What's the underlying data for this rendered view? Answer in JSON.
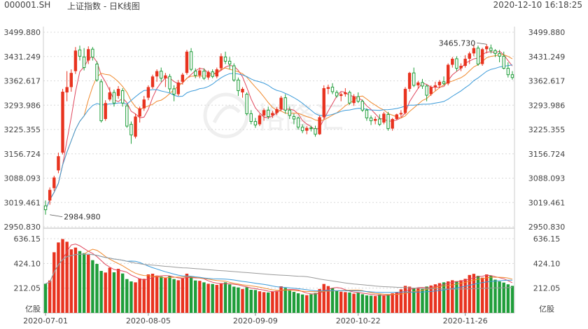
{
  "header": {
    "symbol": "000001.SH",
    "title": "上证指数 - 日K线图",
    "datetime": "2020-12-10 16:18:25"
  },
  "watermark": {
    "text": "格隆汇"
  },
  "colors": {
    "up": "#e8331f",
    "down": "#1f9e3a",
    "ma5": "#e0475d",
    "ma10": "#f08a2e",
    "ma20": "#3a9ad9",
    "ma60": "#9a9a9a",
    "grid": "#d8d8d8",
    "text": "#444444"
  },
  "chart_data": {
    "type": "candlestick",
    "price_ticks": [
      "3499.880",
      "3431.249",
      "3362.617",
      "3293.986",
      "3225.355",
      "3156.724",
      "3088.093",
      "3019.461",
      "2950.830"
    ],
    "price_range": [
      2950.83,
      3499.88
    ],
    "volume_ticks": [
      "636.15",
      "424.10",
      "212.05"
    ],
    "volume_unit": "亿股",
    "volume_range": [
      0,
      636.15
    ],
    "x_labels": [
      "2020-07-01",
      "2020-08-05",
      "2020-09-09",
      "2020-10-22",
      "2020-11-26"
    ],
    "x_label_index": [
      0,
      24,
      49,
      73,
      98
    ],
    "annotations": [
      {
        "text": "3465.730",
        "index": 103,
        "price": 3465.73,
        "side": "left"
      },
      {
        "text": "2984.980",
        "index": 1,
        "price": 2984.98,
        "side": "right"
      }
    ],
    "ohlc": [
      [
        3010,
        3025,
        2985,
        2999
      ],
      [
        3025,
        3062,
        3013,
        3055
      ],
      [
        3060,
        3095,
        3052,
        3090
      ],
      [
        3110,
        3160,
        3102,
        3150
      ],
      [
        3160,
        3340,
        3155,
        3332
      ],
      [
        3330,
        3390,
        3305,
        3345
      ],
      [
        3345,
        3395,
        3332,
        3385
      ],
      [
        3390,
        3458,
        3382,
        3448
      ],
      [
        3450,
        3462,
        3420,
        3432
      ],
      [
        3430,
        3455,
        3392,
        3400
      ],
      [
        3420,
        3460,
        3410,
        3452
      ],
      [
        3452,
        3458,
        3420,
        3430
      ],
      [
        3410,
        3418,
        3360,
        3365
      ],
      [
        3360,
        3367,
        3245,
        3250
      ],
      [
        3255,
        3308,
        3250,
        3300
      ],
      [
        3310,
        3345,
        3305,
        3330
      ],
      [
        3330,
        3338,
        3290,
        3300
      ],
      [
        3320,
        3348,
        3312,
        3340
      ],
      [
        3335,
        3342,
        3290,
        3300
      ],
      [
        3292,
        3298,
        3230,
        3235
      ],
      [
        3240,
        3248,
        3185,
        3210
      ],
      [
        3205,
        3270,
        3200,
        3262
      ],
      [
        3262,
        3290,
        3245,
        3285
      ],
      [
        3285,
        3320,
        3278,
        3310
      ],
      [
        3315,
        3350,
        3308,
        3345
      ],
      [
        3345,
        3380,
        3340,
        3375
      ],
      [
        3375,
        3395,
        3360,
        3390
      ],
      [
        3390,
        3400,
        3360,
        3370
      ],
      [
        3370,
        3385,
        3345,
        3378
      ],
      [
        3375,
        3382,
        3330,
        3340
      ],
      [
        3340,
        3350,
        3305,
        3325
      ],
      [
        3325,
        3365,
        3320,
        3358
      ],
      [
        3360,
        3385,
        3352,
        3380
      ],
      [
        3385,
        3450,
        3380,
        3445
      ],
      [
        3445,
        3455,
        3390,
        3395
      ],
      [
        3390,
        3398,
        3370,
        3378
      ],
      [
        3378,
        3400,
        3370,
        3392
      ],
      [
        3390,
        3398,
        3365,
        3370
      ],
      [
        3372,
        3392,
        3366,
        3388
      ],
      [
        3388,
        3395,
        3370,
        3375
      ],
      [
        3375,
        3400,
        3370,
        3395
      ],
      [
        3398,
        3440,
        3392,
        3432
      ],
      [
        3430,
        3445,
        3410,
        3418
      ],
      [
        3418,
        3430,
        3395,
        3410
      ],
      [
        3405,
        3412,
        3360,
        3365
      ],
      [
        3365,
        3372,
        3320,
        3335
      ],
      [
        3330,
        3345,
        3315,
        3340
      ],
      [
        3325,
        3330,
        3265,
        3270
      ],
      [
        3270,
        3280,
        3240,
        3248
      ],
      [
        3248,
        3258,
        3230,
        3238
      ],
      [
        3240,
        3270,
        3235,
        3265
      ],
      [
        3265,
        3285,
        3250,
        3280
      ],
      [
        3280,
        3290,
        3255,
        3262
      ],
      [
        3265,
        3278,
        3258,
        3272
      ],
      [
        3272,
        3288,
        3266,
        3283
      ],
      [
        3283,
        3320,
        3278,
        3315
      ],
      [
        3315,
        3325,
        3270,
        3280
      ],
      [
        3280,
        3290,
        3255,
        3265
      ],
      [
        3262,
        3270,
        3240,
        3255
      ],
      [
        3258,
        3262,
        3225,
        3232
      ],
      [
        3232,
        3240,
        3215,
        3222
      ],
      [
        3222,
        3235,
        3212,
        3230
      ],
      [
        3230,
        3236,
        3220,
        3228
      ],
      [
        3228,
        3236,
        3205,
        3212
      ],
      [
        3212,
        3265,
        3210,
        3260
      ],
      [
        3260,
        3350,
        3255,
        3342
      ],
      [
        3340,
        3352,
        3325,
        3345
      ],
      [
        3345,
        3356,
        3325,
        3332
      ],
      [
        3330,
        3336,
        3315,
        3320
      ],
      [
        3320,
        3330,
        3305,
        3325
      ],
      [
        3325,
        3342,
        3318,
        3330
      ],
      [
        3330,
        3335,
        3295,
        3300
      ],
      [
        3300,
        3325,
        3292,
        3318
      ],
      [
        3318,
        3330,
        3300,
        3305
      ],
      [
        3305,
        3310,
        3275,
        3280
      ],
      [
        3280,
        3285,
        3250,
        3258
      ],
      [
        3258,
        3265,
        3238,
        3250
      ],
      [
        3250,
        3262,
        3240,
        3255
      ],
      [
        3255,
        3268,
        3235,
        3240
      ],
      [
        3245,
        3275,
        3240,
        3270
      ],
      [
        3268,
        3275,
        3222,
        3228
      ],
      [
        3228,
        3258,
        3222,
        3255
      ],
      [
        3255,
        3270,
        3252,
        3268
      ],
      [
        3268,
        3280,
        3260,
        3272
      ],
      [
        3272,
        3345,
        3268,
        3340
      ],
      [
        3340,
        3388,
        3332,
        3385
      ],
      [
        3385,
        3400,
        3345,
        3350
      ],
      [
        3350,
        3362,
        3340,
        3358
      ],
      [
        3358,
        3368,
        3340,
        3348
      ],
      [
        3348,
        3352,
        3305,
        3322
      ],
      [
        3325,
        3350,
        3320,
        3345
      ],
      [
        3345,
        3360,
        3335,
        3350
      ],
      [
        3350,
        3365,
        3342,
        3360
      ],
      [
        3360,
        3375,
        3350,
        3355
      ],
      [
        3355,
        3412,
        3350,
        3408
      ],
      [
        3408,
        3430,
        3400,
        3425
      ],
      [
        3425,
        3432,
        3390,
        3398
      ],
      [
        3398,
        3412,
        3390,
        3405
      ],
      [
        3405,
        3435,
        3400,
        3425
      ],
      [
        3425,
        3445,
        3410,
        3440
      ],
      [
        3440,
        3465,
        3432,
        3455
      ],
      [
        3455,
        3462,
        3405,
        3410
      ],
      [
        3410,
        3456,
        3405,
        3452
      ],
      [
        3452,
        3466,
        3440,
        3460
      ],
      [
        3455,
        3465,
        3440,
        3448
      ],
      [
        3448,
        3452,
        3430,
        3440
      ],
      [
        3440,
        3450,
        3415,
        3432
      ],
      [
        3432,
        3445,
        3395,
        3398
      ],
      [
        3398,
        3415,
        3372,
        3380
      ],
      [
        3380,
        3390,
        3366,
        3372
      ]
    ],
    "volume": [
      250,
      278,
      520,
      604,
      633,
      610,
      545,
      560,
      530,
      512,
      498,
      452,
      420,
      360,
      346,
      388,
      348,
      378,
      338,
      290,
      270,
      262,
      295,
      292,
      330,
      336,
      320,
      312,
      300,
      318,
      290,
      280,
      295,
      336,
      310,
      278,
      275,
      262,
      250,
      248,
      240,
      255,
      262,
      244,
      225,
      218,
      205,
      220,
      198,
      196,
      185,
      178,
      175,
      182,
      188,
      228,
      214,
      192,
      180,
      168,
      158,
      152,
      160,
      170,
      205,
      248,
      230,
      212,
      190,
      182,
      178,
      175,
      165,
      172,
      160,
      150,
      148,
      145,
      158,
      148,
      160,
      168,
      178,
      202,
      232,
      225,
      210,
      215,
      205,
      226,
      235,
      245,
      255,
      262,
      270,
      280,
      272,
      280,
      292,
      325,
      335,
      318,
      302,
      330,
      318,
      285,
      270,
      260,
      245,
      232
    ]
  }
}
